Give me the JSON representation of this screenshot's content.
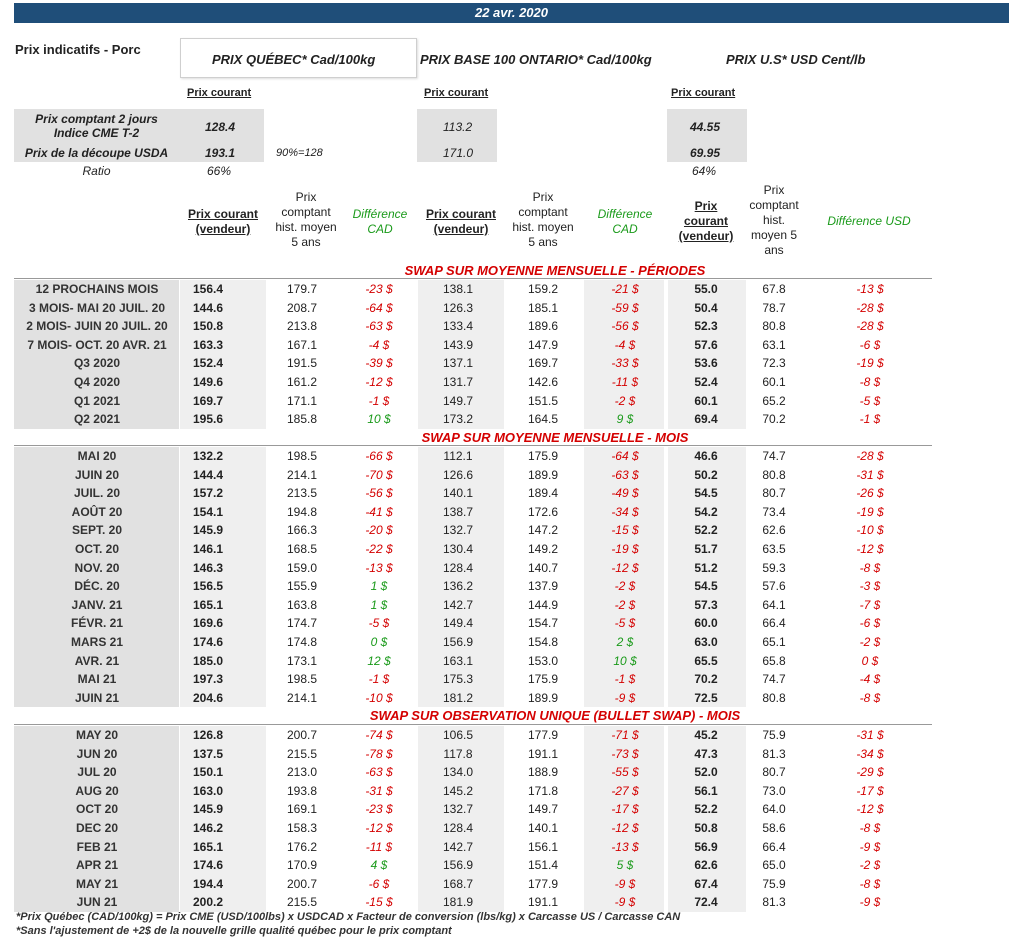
{
  "date": "22 avr. 2020",
  "title": "Prix indicatifs - Porc",
  "headers": {
    "quebec": "PRIX QUÉBEC* Cad/100kg",
    "ontario": "PRIX BASE 100 ONTARIO* Cad/100kg",
    "us": "PRIX U.S* USD Cent/lb"
  },
  "prix_courant_label": "Prix courant",
  "indices": {
    "row1_label_a": "Prix comptant 2 jours",
    "row1_label_b": "Indice CME T-2",
    "row2_label": "Prix de la découpe USDA",
    "ratio_label": "Ratio",
    "note_90": "90%=128",
    "quebec": {
      "cme": "128.4",
      "usda": "193.1",
      "ratio": "66%"
    },
    "ontario": {
      "cme": "113.2",
      "usda": "171.0"
    },
    "us": {
      "cme": "44.55",
      "usda": "69.95",
      "ratio": "64%"
    }
  },
  "col_headers": {
    "pc_vendeur_a": "Prix courant",
    "pc_vendeur_b": "(vendeur)",
    "hist_a": "Prix",
    "hist_b": "comptant",
    "hist_c": "hist. moyen",
    "hist_d": "5 ans",
    "diff_cad_a": "Différence",
    "diff_cad_b": "CAD",
    "us_pc_a": "Prix",
    "us_pc_b": "courant",
    "us_pc_c": "(vendeur)",
    "us_hist_a": "Prix",
    "us_hist_b": "comptant",
    "us_hist_c": "hist.",
    "us_hist_d": "moyen 5",
    "us_hist_e": "ans",
    "diff_usd": "Différence USD"
  },
  "sections": [
    {
      "title": "SWAP SUR MOYENNE MENSUELLE - PÉRIODES",
      "rows": [
        [
          "12 PROCHAINS MOIS",
          "156.4",
          "179.7",
          "-23 $",
          "138.1",
          "159.2",
          "-21 $",
          "55.0",
          "67.8",
          "-13 $"
        ],
        [
          "3 MOIS- MAI 20 JUIL. 20",
          "144.6",
          "208.7",
          "-64 $",
          "126.3",
          "185.1",
          "-59 $",
          "50.4",
          "78.7",
          "-28 $"
        ],
        [
          "2 MOIS- JUIN 20 JUIL. 20",
          "150.8",
          "213.8",
          "-63 $",
          "133.4",
          "189.6",
          "-56 $",
          "52.3",
          "80.8",
          "-28 $"
        ],
        [
          "7 MOIS- OCT. 20 AVR. 21",
          "163.3",
          "167.1",
          "-4 $",
          "143.9",
          "147.9",
          "-4 $",
          "57.6",
          "63.1",
          "-6 $"
        ],
        [
          "Q3 2020",
          "152.4",
          "191.5",
          "-39 $",
          "137.1",
          "169.7",
          "-33 $",
          "53.6",
          "72.3",
          "-19 $"
        ],
        [
          "Q4 2020",
          "149.6",
          "161.2",
          "-12 $",
          "131.7",
          "142.6",
          "-11 $",
          "52.4",
          "60.1",
          "-8 $"
        ],
        [
          "Q1 2021",
          "169.7",
          "171.1",
          "-1 $",
          "149.7",
          "151.5",
          "-2 $",
          "60.1",
          "65.2",
          "-5 $"
        ],
        [
          "Q2 2021",
          "195.6",
          "185.8",
          "10 $",
          "173.2",
          "164.5",
          "9 $",
          "69.4",
          "70.2",
          "-1 $"
        ]
      ]
    },
    {
      "title": "SWAP SUR MOYENNE MENSUELLE - MOIS",
      "rows": [
        [
          "MAI 20",
          "132.2",
          "198.5",
          "-66 $",
          "112.1",
          "175.9",
          "-64 $",
          "46.6",
          "74.7",
          "-28 $"
        ],
        [
          "JUIN 20",
          "144.4",
          "214.1",
          "-70 $",
          "126.6",
          "189.9",
          "-63 $",
          "50.2",
          "80.8",
          "-31 $"
        ],
        [
          "JUIL. 20",
          "157.2",
          "213.5",
          "-56 $",
          "140.1",
          "189.4",
          "-49 $",
          "54.5",
          "80.7",
          "-26 $"
        ],
        [
          "AOÛT 20",
          "154.1",
          "194.8",
          "-41 $",
          "138.7",
          "172.6",
          "-34 $",
          "54.2",
          "73.4",
          "-19 $"
        ],
        [
          "SEPT. 20",
          "145.9",
          "166.3",
          "-20 $",
          "132.7",
          "147.2",
          "-15 $",
          "52.2",
          "62.6",
          "-10 $"
        ],
        [
          "OCT. 20",
          "146.1",
          "168.5",
          "-22 $",
          "130.4",
          "149.2",
          "-19 $",
          "51.7",
          "63.5",
          "-12 $"
        ],
        [
          "NOV. 20",
          "146.3",
          "159.0",
          "-13 $",
          "128.4",
          "140.7",
          "-12 $",
          "51.2",
          "59.3",
          "-8 $"
        ],
        [
          "DÉC. 20",
          "156.5",
          "155.9",
          "1 $",
          "136.2",
          "137.9",
          "-2 $",
          "54.5",
          "57.6",
          "-3 $"
        ],
        [
          "JANV. 21",
          "165.1",
          "163.8",
          "1 $",
          "142.7",
          "144.9",
          "-2 $",
          "57.3",
          "64.1",
          "-7 $"
        ],
        [
          "FÉVR. 21",
          "169.6",
          "174.7",
          "-5 $",
          "149.4",
          "154.7",
          "-5 $",
          "60.0",
          "66.4",
          "-6 $"
        ],
        [
          "MARS 21",
          "174.6",
          "174.8",
          "0 $",
          "156.9",
          "154.8",
          "2 $",
          "63.0",
          "65.1",
          "-2 $"
        ],
        [
          "AVR. 21",
          "185.0",
          "173.1",
          "12 $",
          "163.1",
          "153.0",
          "10 $",
          "65.5",
          "65.8",
          "0 $"
        ],
        [
          "MAI 21",
          "197.3",
          "198.5",
          "-1 $",
          "175.3",
          "175.9",
          "-1 $",
          "70.2",
          "74.7",
          "-4 $"
        ],
        [
          "JUIN 21",
          "204.6",
          "214.1",
          "-10 $",
          "181.2",
          "189.9",
          "-9 $",
          "72.5",
          "80.8",
          "-8 $"
        ]
      ]
    },
    {
      "title": "SWAP SUR OBSERVATION UNIQUE (BULLET SWAP) - MOIS",
      "rows": [
        [
          "MAY 20",
          "126.8",
          "200.7",
          "-74 $",
          "106.5",
          "177.9",
          "-71 $",
          "45.2",
          "75.9",
          "-31 $"
        ],
        [
          "JUN 20",
          "137.5",
          "215.5",
          "-78 $",
          "117.8",
          "191.1",
          "-73 $",
          "47.3",
          "81.3",
          "-34 $"
        ],
        [
          "JUL 20",
          "150.1",
          "213.0",
          "-63 $",
          "134.0",
          "188.9",
          "-55 $",
          "52.0",
          "80.7",
          "-29 $"
        ],
        [
          "AUG 20",
          "163.0",
          "193.8",
          "-31 $",
          "145.2",
          "171.8",
          "-27 $",
          "56.1",
          "73.0",
          "-17 $"
        ],
        [
          "OCT 20",
          "145.9",
          "169.1",
          "-23 $",
          "132.7",
          "149.7",
          "-17 $",
          "52.2",
          "64.0",
          "-12 $"
        ],
        [
          "DEC 20",
          "146.2",
          "158.3",
          "-12 $",
          "128.4",
          "140.1",
          "-12 $",
          "50.8",
          "58.6",
          "-8 $"
        ],
        [
          "FEB 21",
          "165.1",
          "176.2",
          "-11 $",
          "142.7",
          "156.1",
          "-13 $",
          "56.9",
          "66.4",
          "-9 $"
        ],
        [
          "APR 21",
          "174.6",
          "170.9",
          "4 $",
          "156.9",
          "151.4",
          "5 $",
          "62.6",
          "65.0",
          "-2 $"
        ],
        [
          "MAY 21",
          "194.4",
          "200.7",
          "-6 $",
          "168.7",
          "177.9",
          "-9 $",
          "67.4",
          "75.9",
          "-8 $"
        ],
        [
          "JUN 21",
          "200.2",
          "215.5",
          "-15 $",
          "181.9",
          "191.1",
          "-9 $",
          "72.4",
          "81.3",
          "-9 $"
        ]
      ]
    }
  ],
  "footnotes": [
    "*Prix Québec (CAD/100kg) = Prix CME (USD/100lbs) x USDCAD x Facteur de conversion (lbs/kg) x Carcasse US / Carcasse CAN",
    "*Sans l'ajustement de +2$ de la nouvelle grille qualité québec pour le prix comptant"
  ],
  "colors": {
    "header_bar": "#1f4e79",
    "negative": "#d40000",
    "positive": "#1a9a1a"
  }
}
